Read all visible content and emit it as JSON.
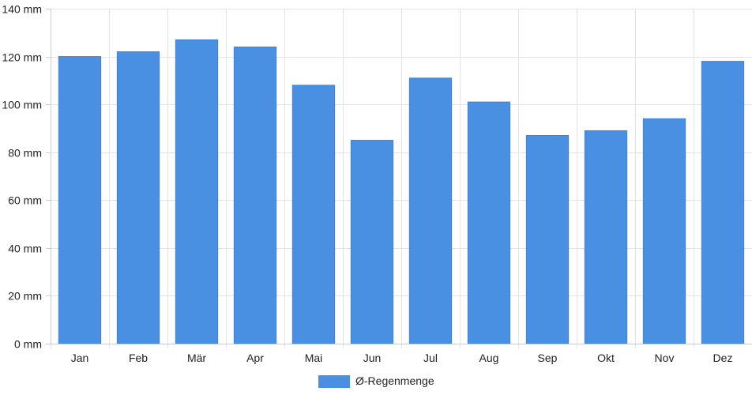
{
  "chart_data": {
    "type": "bar",
    "categories": [
      "Jan",
      "Feb",
      "Mär",
      "Apr",
      "Mai",
      "Jun",
      "Jul",
      "Aug",
      "Sep",
      "Okt",
      "Nov",
      "Dez"
    ],
    "series": [
      {
        "name": "Ø-Regenmenge",
        "color": "#4a90e2",
        "values": [
          120,
          122,
          127,
          124,
          108,
          85,
          111,
          101,
          87,
          89,
          94,
          118
        ]
      }
    ],
    "ylim": [
      0,
      140
    ],
    "yticks": [
      0,
      20,
      40,
      60,
      80,
      100,
      120,
      140
    ],
    "y_unit": "mm",
    "grid": true,
    "legend_position": "bottom-center"
  }
}
